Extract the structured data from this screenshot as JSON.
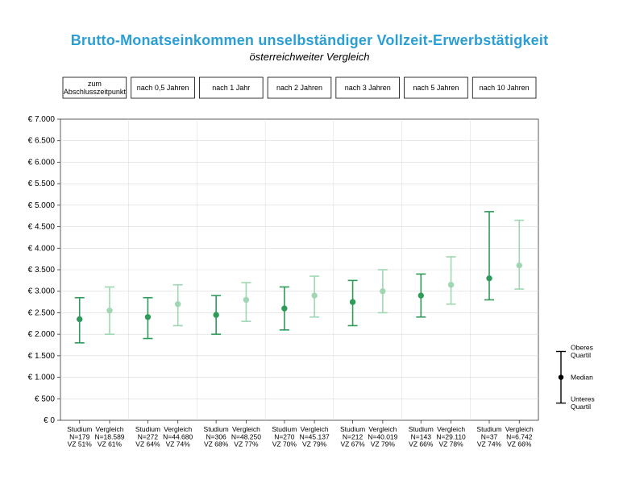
{
  "title": "Brutto-Monatseinkommen unselbständiger Vollzeit-Erwerbstätigkeit",
  "subtitle": "österreichweiter Vergleich",
  "title_color": "#2a9fd6",
  "subtitle_color": "#000000",
  "title_fontsize": 18,
  "subtitle_fontsize": 13,
  "background": "#ffffff",
  "panel_labels": [
    "zum\nAbschlusszeitpunkt",
    "nach 0,5 Jahren",
    "nach 1 Jahr",
    "nach 2 Jahren",
    "nach 3 Jahren",
    "nach 5 Jahren",
    "nach 10 Jahren"
  ],
  "y_axis": {
    "min": 0,
    "max": 7000,
    "step": 500,
    "format_prefix": "€ ",
    "ticks": [
      "€ 0",
      "€ 500",
      "€ 1.000",
      "€ 1.500",
      "€ 2.000",
      "€ 2.500",
      "€ 3.000",
      "€ 3.500",
      "€ 4.000",
      "€ 4.500",
      "€ 5.000",
      "€ 5.500",
      "€ 6.000",
      "€ 6.500",
      "€ 7.000"
    ]
  },
  "series_colors": {
    "studium": "#2e9b5a",
    "vergleich": "#9fd7b3"
  },
  "grid_color": "#d9d9d9",
  "axis_color": "#333333",
  "bar_cap_halfwidth": 6,
  "marker_radius": 3.2,
  "line_width": 1.6,
  "legend": {
    "upper": "Oberes\nQuartil",
    "median": "Median",
    "lower": "Unteres\nQuartil",
    "color": "#000000"
  },
  "panels": [
    {
      "studium": {
        "q1": 1800,
        "med": 2350,
        "q3": 2850,
        "label": "Studium\nN=179\nVZ 51%"
      },
      "vergleich": {
        "q1": 2000,
        "med": 2550,
        "q3": 3100,
        "label": "Vergleich\nN=18.589\nVZ 61%"
      }
    },
    {
      "studium": {
        "q1": 1900,
        "med": 2400,
        "q3": 2850,
        "label": "Studium\nN=272\nVZ 64%"
      },
      "vergleich": {
        "q1": 2200,
        "med": 2700,
        "q3": 3150,
        "label": "Vergleich\nN=44.680\nVZ 74%"
      }
    },
    {
      "studium": {
        "q1": 2000,
        "med": 2450,
        "q3": 2900,
        "label": "Studium\nN=306\nVZ 68%"
      },
      "vergleich": {
        "q1": 2300,
        "med": 2800,
        "q3": 3200,
        "label": "Vergleich\nN=48.250\nVZ 77%"
      }
    },
    {
      "studium": {
        "q1": 2100,
        "med": 2600,
        "q3": 3100,
        "label": "Studium\nN=270\nVZ 70%"
      },
      "vergleich": {
        "q1": 2400,
        "med": 2900,
        "q3": 3350,
        "label": "Vergleich\nN=45.137\nVZ 79%"
      }
    },
    {
      "studium": {
        "q1": 2200,
        "med": 2750,
        "q3": 3250,
        "label": "Studium\nN=212\nVZ 67%"
      },
      "vergleich": {
        "q1": 2500,
        "med": 3000,
        "q3": 3500,
        "label": "Vergleich\nN=40.019\nVZ 79%"
      }
    },
    {
      "studium": {
        "q1": 2400,
        "med": 2900,
        "q3": 3400,
        "label": "Studium\nN=143\nVZ 66%"
      },
      "vergleich": {
        "q1": 2700,
        "med": 3150,
        "q3": 3800,
        "label": "Vergleich\nN=29.110\nVZ 78%"
      }
    },
    {
      "studium": {
        "q1": 2800,
        "med": 3300,
        "q3": 4850,
        "label": "Studium\nN=37\nVZ 74%"
      },
      "vergleich": {
        "q1": 3050,
        "med": 3600,
        "q3": 4650,
        "label": "Vergleich\nN=6.742\nVZ 66%"
      }
    }
  ]
}
